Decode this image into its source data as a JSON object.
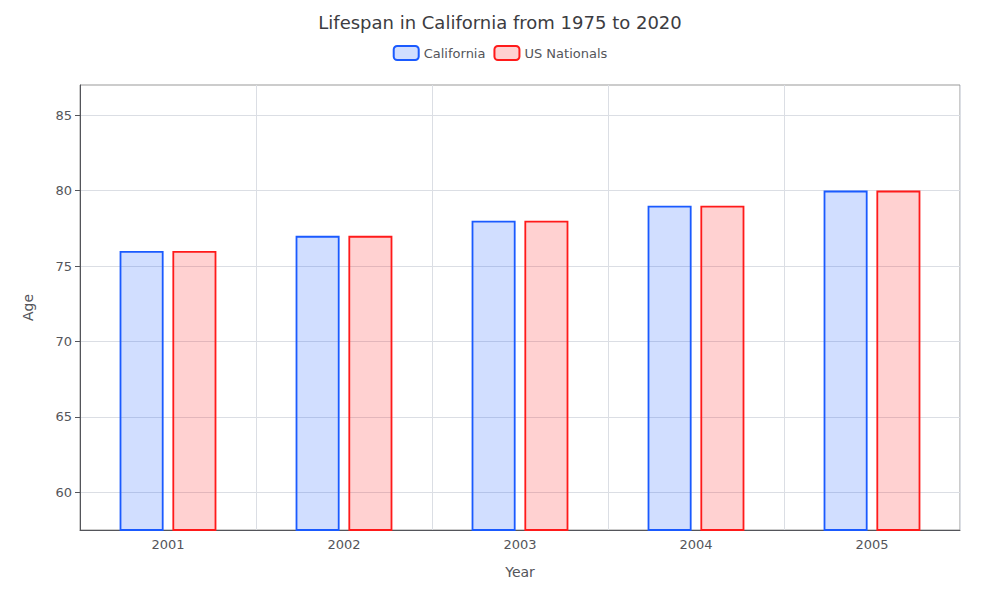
{
  "chart_data": {
    "type": "bar",
    "title": "Lifespan in California from 1975 to 2020",
    "xlabel": "Year",
    "ylabel": "Age",
    "categories": [
      "2001",
      "2002",
      "2003",
      "2004",
      "2005"
    ],
    "series": [
      {
        "name": "California",
        "color": "#1a5aff",
        "values": [
          76,
          77,
          78,
          79,
          80
        ]
      },
      {
        "name": "US Nationals",
        "color": "#ff1a1a",
        "values": [
          76,
          77,
          78,
          79,
          80
        ]
      }
    ],
    "ylim": [
      57.5,
      87
    ],
    "yticks": [
      60,
      65,
      70,
      75,
      80,
      85
    ],
    "grid": true,
    "legend": "top"
  }
}
